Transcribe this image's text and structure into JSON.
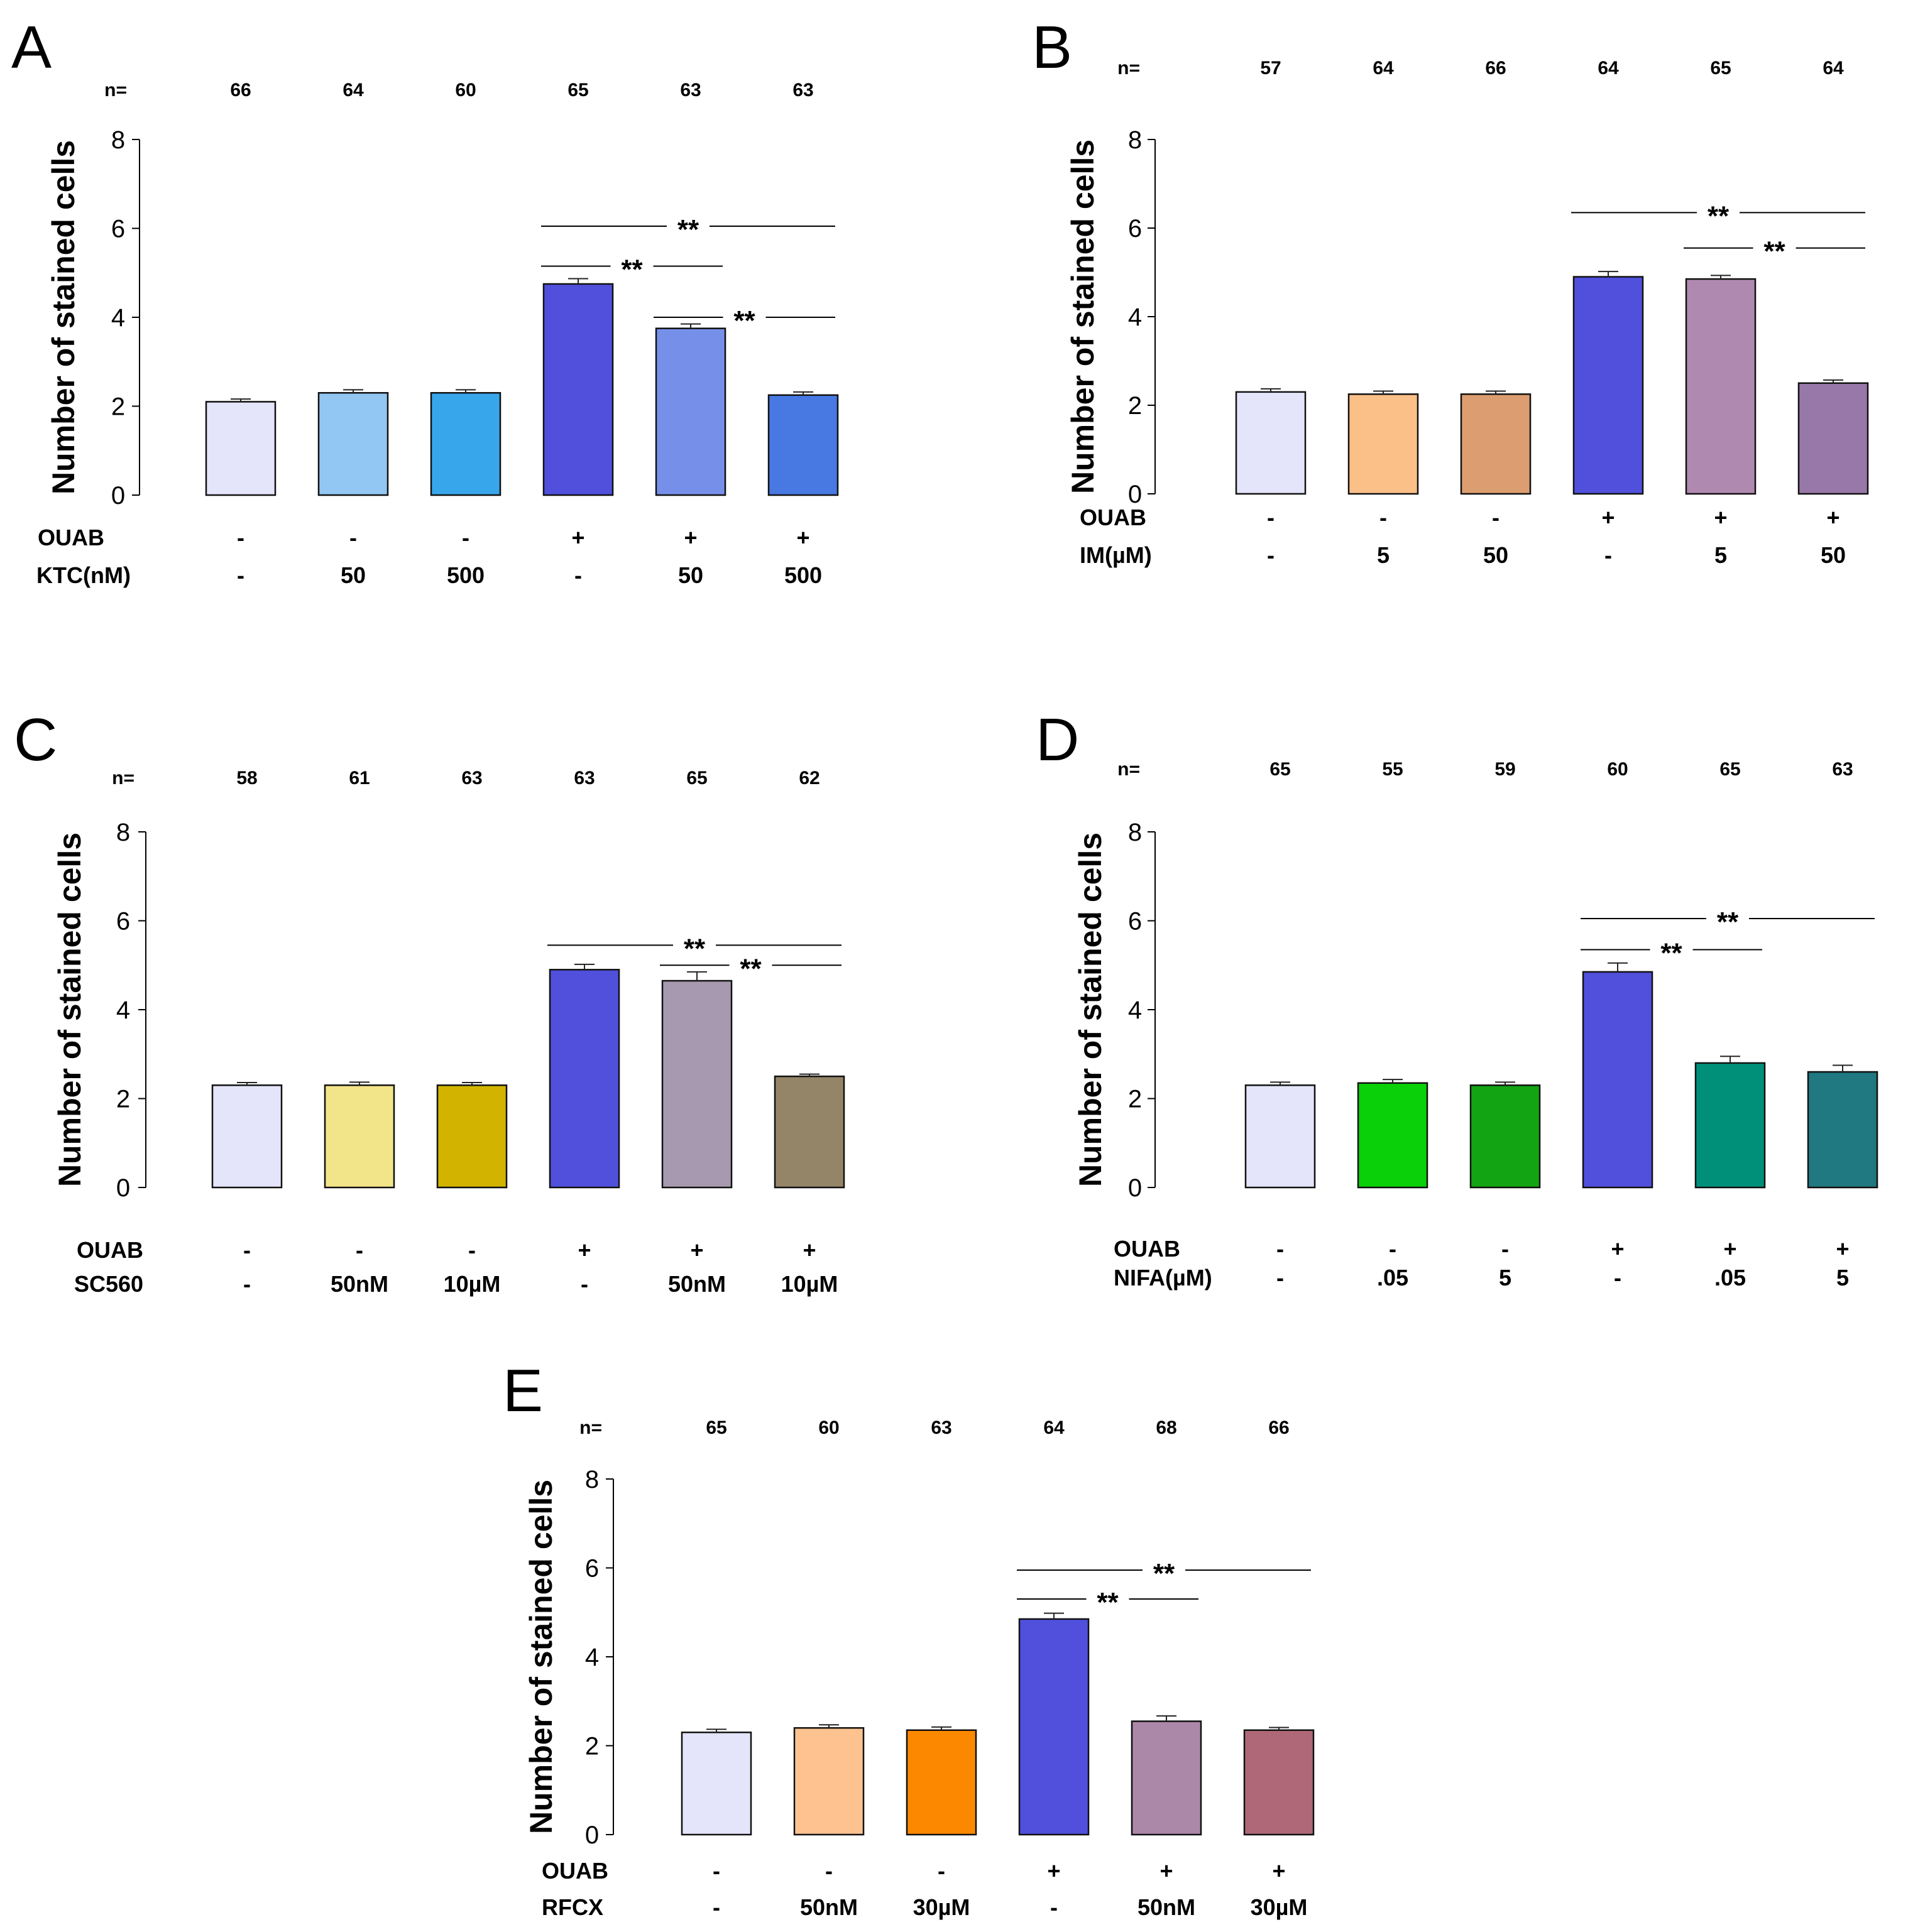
{
  "figure": {
    "chart_data": [
      {
        "panel_label": "A",
        "type": "bar",
        "ylabel": "Number of stained cells",
        "ylim": [
          0,
          8
        ],
        "yticks": [
          0,
          2,
          4,
          6,
          8
        ],
        "n_label": "n=",
        "n_values": [
          "66",
          "64",
          "60",
          "65",
          "63",
          "63"
        ],
        "values": [
          2.1,
          2.3,
          2.3,
          4.75,
          3.75,
          2.25
        ],
        "errors": [
          0.06,
          0.07,
          0.07,
          0.12,
          0.1,
          0.07
        ],
        "colors": [
          "#e4e4fa",
          "#92c7f3",
          "#38a6ea",
          "#5050dc",
          "#7690ea",
          "#4878e2"
        ],
        "treatments": [
          {
            "label": "OUAB",
            "values": [
              "-",
              "-",
              "-",
              "+",
              "+",
              "+"
            ]
          },
          {
            "label": "KTC(nM)",
            "values": [
              "-",
              "50",
              "500",
              "-",
              "50",
              "500"
            ]
          }
        ],
        "significance": [
          {
            "from": 3,
            "to": 5,
            "y": 6.05,
            "label": "**"
          },
          {
            "from": 3,
            "to": 4,
            "y": 5.15,
            "label": "**"
          },
          {
            "from": 4,
            "to": 5,
            "y": 4.0,
            "label": "**"
          }
        ]
      },
      {
        "panel_label": "B",
        "type": "bar",
        "ylabel": "Number of stained cells",
        "ylim": [
          0,
          8
        ],
        "yticks": [
          0,
          2,
          4,
          6,
          8
        ],
        "n_label": "n=",
        "n_values": [
          "57",
          "64",
          "66",
          "64",
          "65",
          "64"
        ],
        "values": [
          2.3,
          2.25,
          2.25,
          4.9,
          4.85,
          2.5
        ],
        "errors": [
          0.07,
          0.07,
          0.07,
          0.12,
          0.08,
          0.07
        ],
        "colors": [
          "#e4e4fa",
          "#fbbf88",
          "#dc9e70",
          "#5050dc",
          "#b089b0",
          "#9878a8"
        ],
        "treatments": [
          {
            "label": "OUAB",
            "values": [
              "-",
              "-",
              "-",
              "+",
              "+",
              "+"
            ]
          },
          {
            "label": "IM(µM)",
            "values": [
              "-",
              "5",
              "50",
              "-",
              "5",
              "50"
            ]
          }
        ],
        "significance": [
          {
            "from": 3,
            "to": 5,
            "y": 6.35,
            "label": "**"
          },
          {
            "from": 4,
            "to": 5,
            "y": 5.55,
            "label": "**"
          }
        ]
      },
      {
        "panel_label": "C",
        "type": "bar",
        "ylabel": "Number of stained cells",
        "ylim": [
          0,
          8
        ],
        "yticks": [
          0,
          2,
          4,
          6,
          8
        ],
        "n_label": "n=",
        "n_values": [
          "58",
          "61",
          "63",
          "63",
          "65",
          "62"
        ],
        "values": [
          2.3,
          2.3,
          2.3,
          4.9,
          4.65,
          2.5
        ],
        "errors": [
          0.06,
          0.07,
          0.06,
          0.12,
          0.2,
          0.05
        ],
        "colors": [
          "#e4e4fa",
          "#f2e488",
          "#d2b400",
          "#5050dc",
          "#a699b0",
          "#948468"
        ],
        "treatments": [
          {
            "label": "OUAB",
            "values": [
              "-",
              "-",
              "-",
              "+",
              "+",
              "+"
            ]
          },
          {
            "label": "SC560",
            "values": [
              "-",
              "50nM",
              "10µM",
              "-",
              "50nM",
              "10µM"
            ]
          }
        ],
        "significance": [
          {
            "from": 3,
            "to": 5,
            "y": 5.45,
            "label": "**"
          },
          {
            "from": 4,
            "to": 5,
            "y": 5.0,
            "label": "**"
          }
        ]
      },
      {
        "panel_label": "D",
        "type": "bar",
        "ylabel": "Number of stained cells",
        "ylim": [
          0,
          8
        ],
        "yticks": [
          0,
          2,
          4,
          6,
          8
        ],
        "n_label": "n=",
        "n_values": [
          "65",
          "55",
          "59",
          "60",
          "65",
          "63"
        ],
        "values": [
          2.3,
          2.35,
          2.3,
          4.85,
          2.8,
          2.6
        ],
        "errors": [
          0.07,
          0.08,
          0.07,
          0.2,
          0.15,
          0.15
        ],
        "colors": [
          "#e4e4fa",
          "#0ad00a",
          "#12a412",
          "#5050dc",
          "#00907a",
          "#207880"
        ],
        "treatments": [
          {
            "label": "OUAB",
            "values": [
              "-",
              "-",
              "-",
              "+",
              "+",
              "+"
            ]
          },
          {
            "label": "NIFA(µM)",
            "values": [
              "-",
              ".05",
              "5",
              "-",
              ".05",
              "5"
            ]
          }
        ],
        "significance": [
          {
            "from": 3,
            "to": 5,
            "y": 6.05,
            "label": "**"
          },
          {
            "from": 3,
            "to": 4,
            "y": 5.35,
            "label": "**"
          }
        ]
      },
      {
        "panel_label": "E",
        "type": "bar",
        "ylabel": "Number of stained cells",
        "ylim": [
          0,
          8
        ],
        "yticks": [
          0,
          2,
          4,
          6,
          8
        ],
        "n_label": "n=",
        "n_values": [
          "65",
          "60",
          "63",
          "64",
          "68",
          "66"
        ],
        "values": [
          2.3,
          2.4,
          2.35,
          4.85,
          2.55,
          2.35
        ],
        "errors": [
          0.07,
          0.07,
          0.07,
          0.13,
          0.12,
          0.06
        ],
        "colors": [
          "#e4e4fa",
          "#fdc290",
          "#fc8800",
          "#5050dc",
          "#ac88a8",
          "#ae6878"
        ],
        "treatments": [
          {
            "label": "OUAB",
            "values": [
              "-",
              "-",
              "-",
              "+",
              "+",
              "+"
            ]
          },
          {
            "label": "RFCX",
            "values": [
              "-",
              "50nM",
              "30µM",
              "-",
              "50nM",
              "30µM"
            ]
          }
        ],
        "significance": [
          {
            "from": 3,
            "to": 5,
            "y": 5.95,
            "label": "**"
          },
          {
            "from": 3,
            "to": 4,
            "y": 5.3,
            "label": "**"
          }
        ]
      }
    ]
  }
}
